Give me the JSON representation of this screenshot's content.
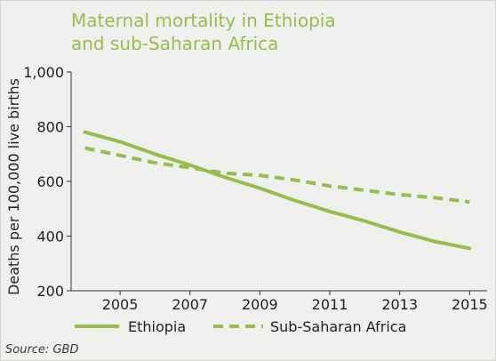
{
  "title_line1": "Maternal mortality in Ethiopia",
  "title_line2": "and sub-Saharan Africa",
  "source": "Source: GBD",
  "colors": {
    "line": "#97bd4f",
    "background": "#f0f0ef"
  },
  "chart_data": {
    "type": "line",
    "ylabel": "Deaths per 100,000 live births",
    "ylim": [
      200,
      1000
    ],
    "yticks": [
      200,
      400,
      600,
      800,
      1000
    ],
    "ytick_labels": [
      "200",
      "400",
      "600",
      "800",
      "1,000"
    ],
    "xlim": [
      2003.6,
      2015.5
    ],
    "xticks": [
      2005,
      2007,
      2009,
      2011,
      2013,
      2015
    ],
    "xtick_labels": [
      "2005",
      "2007",
      "2009",
      "2011",
      "2013",
      "2015"
    ],
    "legend_position": "bottom",
    "series": [
      {
        "name": "Ethiopia",
        "style": "solid",
        "x": [
          2004,
          2005,
          2006,
          2007,
          2008,
          2009,
          2010,
          2011,
          2012,
          2013,
          2014,
          2015
        ],
        "y": [
          780,
          745,
          700,
          660,
          615,
          575,
          530,
          490,
          455,
          415,
          380,
          355
        ]
      },
      {
        "name": "Sub-Saharan Africa",
        "style": "dashed",
        "x": [
          2004,
          2005,
          2006,
          2007,
          2008,
          2009,
          2010,
          2011,
          2012,
          2013,
          2014,
          2015
        ],
        "y": [
          722,
          695,
          668,
          650,
          630,
          622,
          605,
          583,
          567,
          552,
          540,
          525
        ]
      }
    ]
  }
}
